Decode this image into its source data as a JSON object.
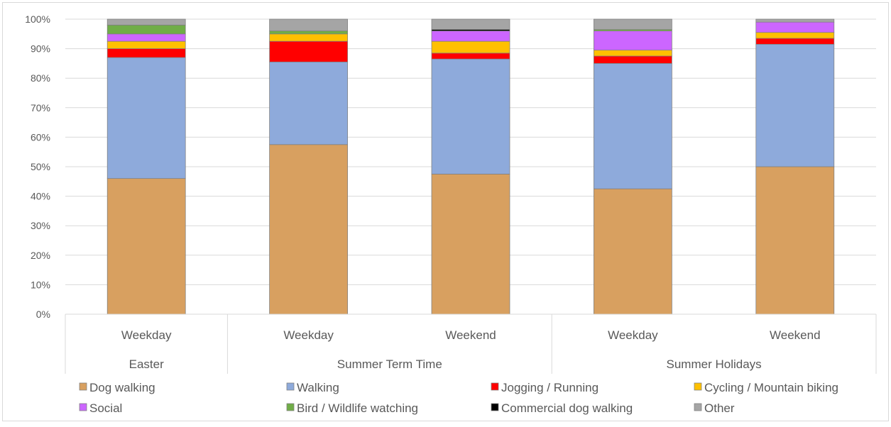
{
  "chart_data": {
    "type": "bar",
    "stacked": true,
    "percent_stacked": true,
    "y_ticks": [
      "0%",
      "10%",
      "20%",
      "30%",
      "40%",
      "50%",
      "60%",
      "70%",
      "80%",
      "90%",
      "100%"
    ],
    "ylim": [
      0,
      100
    ],
    "grid": true,
    "legend_position": "bottom",
    "groups": [
      {
        "label": "Easter",
        "categories": [
          "Weekday"
        ]
      },
      {
        "label": "Summer Term Time",
        "categories": [
          "Weekday",
          "Weekend"
        ]
      },
      {
        "label": "Summer Holidays",
        "categories": [
          "Weekday",
          "Weekend"
        ]
      }
    ],
    "categories": [
      "Easter - Weekday",
      "Summer Term Time - Weekday",
      "Summer Term Time - Weekend",
      "Summer Holidays - Weekday",
      "Summer Holidays - Weekend"
    ],
    "series": [
      {
        "name": "Dog walking",
        "color": "#d8a060",
        "values": [
          46,
          57.5,
          47.5,
          42.5,
          50
        ]
      },
      {
        "name": "Walking",
        "color": "#8eaadb",
        "values": [
          41,
          28,
          39,
          42.5,
          41.5
        ]
      },
      {
        "name": "Jogging / Running",
        "color": "#ff0000",
        "values": [
          3,
          7,
          2,
          2.5,
          2
        ]
      },
      {
        "name": "Cycling / Mountain biking",
        "color": "#ffc000",
        "values": [
          2.5,
          2.5,
          4,
          2,
          2
        ]
      },
      {
        "name": "Social",
        "color": "#cc66ff",
        "values": [
          2.5,
          0,
          3.5,
          6.5,
          3.5
        ]
      },
      {
        "name": "Bird / Wildlife watching",
        "color": "#70ad47",
        "values": [
          3,
          1,
          0,
          0.5,
          0
        ]
      },
      {
        "name": "Commercial dog walking",
        "color": "#000000",
        "values": [
          0,
          0,
          0.5,
          0,
          0
        ]
      },
      {
        "name": "Other",
        "color": "#a5a5a5",
        "values": [
          2,
          4,
          3.5,
          3.5,
          1
        ]
      }
    ]
  }
}
